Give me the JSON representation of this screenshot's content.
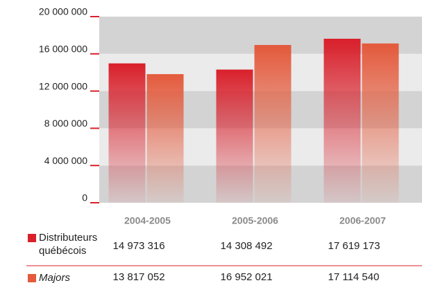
{
  "chart_data": {
    "type": "bar",
    "categories": [
      "2004-2005",
      "2005-2006",
      "2006-2007"
    ],
    "series": [
      {
        "name": "Distributeurs québécois",
        "color": "#d9202b",
        "values": [
          14973316,
          14308492,
          17619173
        ],
        "value_labels": [
          "14 973 316",
          "14 308 492",
          "17 619 173"
        ]
      },
      {
        "name": "Majors",
        "color": "#e45a3c",
        "values": [
          13817052,
          16952021,
          17114540
        ],
        "value_labels": [
          "13 817 052",
          "16 952 021",
          "17 114 540"
        ]
      }
    ],
    "ylim": [
      0,
      20000000
    ],
    "yticks": [
      {
        "value": 0,
        "label": "0"
      },
      {
        "value": 4000000,
        "label": "4 000 000"
      },
      {
        "value": 8000000,
        "label": "8 000 000"
      },
      {
        "value": 12000000,
        "label": "12 000 000"
      },
      {
        "value": 16000000,
        "label": "16 000 000"
      },
      {
        "value": 20000000,
        "label": "20 000 000"
      }
    ],
    "grid": true
  }
}
